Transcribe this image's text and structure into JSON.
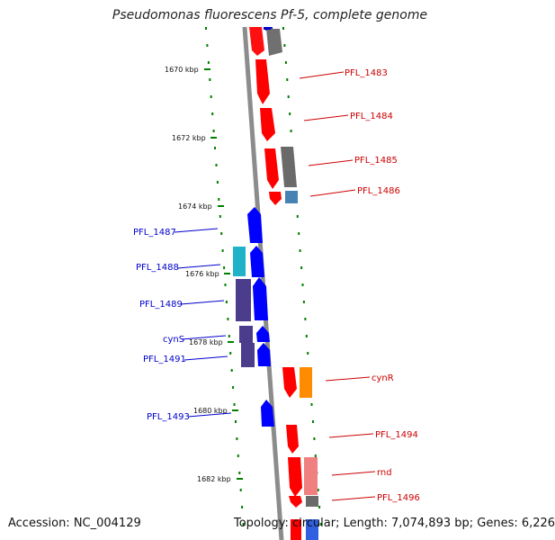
{
  "title": "Pseudomonas fluorescens Pf-5, complete genome",
  "footer": {
    "accession": "Accession: NC_004129",
    "stats": "Topology: circular; Length: 7,074,893 bp; Genes: 6,226"
  },
  "colors": {
    "forward_cds": "#ff0000",
    "reverse_cds": "#0000ff",
    "forward_other": "#ff8c00",
    "dark_gray_feature": "#666666",
    "backbone": "#888888",
    "ticks": "#008000"
  },
  "kbp_labels": [
    "1670 kbp",
    "1672 kbp",
    "1674 kbp",
    "1676 kbp",
    "1678 kbp",
    "1680 kbp",
    "1682 kbp"
  ],
  "forward_labels": [
    "PFL_1483",
    "PFL_1484",
    "PFL_1485",
    "PFL_1486",
    "cynR",
    "PFL_1494",
    "rnd",
    "PFL_1496"
  ],
  "reverse_labels": [
    "PFL_1487",
    "PFL_1488",
    "PFL_1489",
    "cynS",
    "PFL_1491",
    "PFL_1493"
  ]
}
